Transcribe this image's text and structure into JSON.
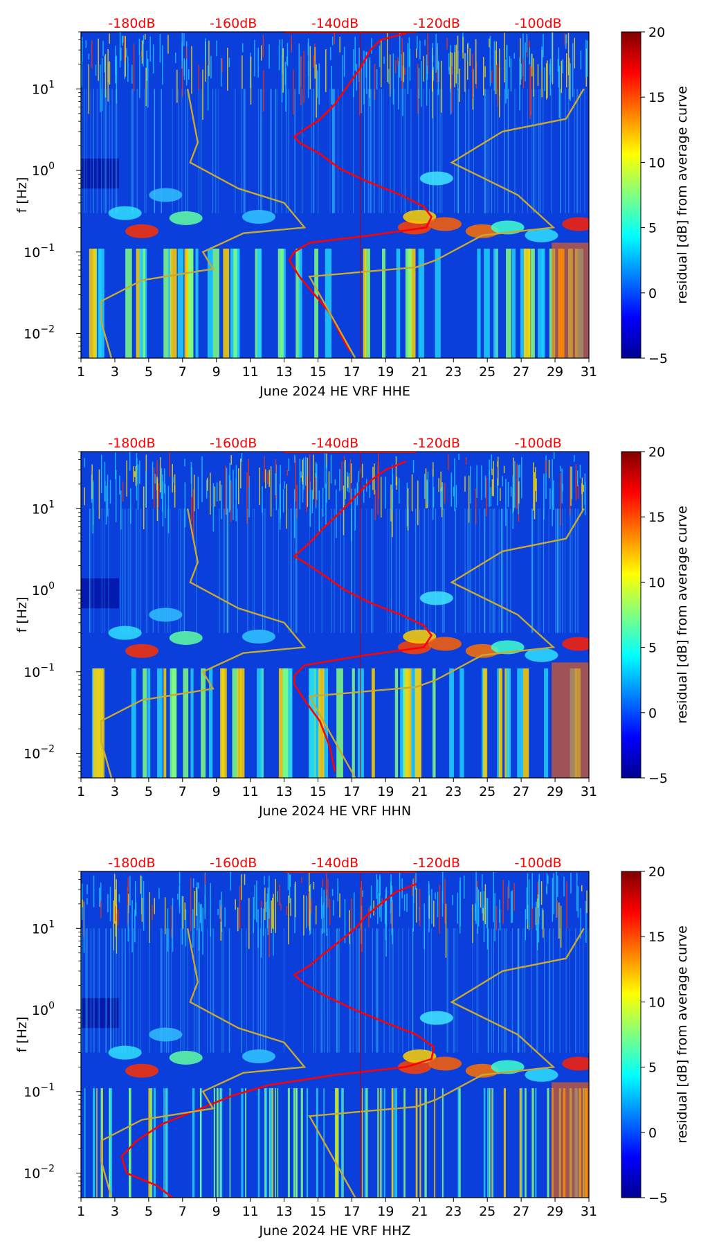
{
  "figure": {
    "colorbar": {
      "label": "residual [dB] from average curve",
      "ticks": [
        -5,
        0,
        5,
        10,
        15,
        20
      ],
      "range": [
        -5,
        20
      ],
      "colormap": "jet"
    }
  },
  "chart_data": [
    {
      "type": "heatmap",
      "xlabel": "June 2024 HE VRF  HHE",
      "ylabel": "f [Hz]",
      "x_ticks": [
        "1",
        "3",
        "5",
        "7",
        "9",
        "11",
        "13",
        "15",
        "17",
        "19",
        "21",
        "23",
        "25",
        "27",
        "29",
        "31"
      ],
      "xlim": [
        1,
        31
      ],
      "y_scale": "log",
      "ylim": [
        0.005,
        50
      ],
      "y_ticks": [
        "10^1",
        "10^0",
        "10^-1",
        "10^-2"
      ],
      "top_axis_labels": [
        "-180dB",
        "-160dB",
        "-140dB",
        "-120dB",
        "-100dB"
      ],
      "top_axis_db": [
        -180,
        -160,
        -140,
        -120,
        -100
      ],
      "series": [
        {
          "color": "#ff0000",
          "points": [
            [
              -126,
              48
            ],
            [
              -131,
              40
            ],
            [
              -133,
              30
            ],
            [
              -135,
              18
            ],
            [
              -137,
              12
            ],
            [
              -139,
              8
            ],
            [
              -140,
              6.5
            ],
            [
              -143,
              4.2
            ],
            [
              -146,
              3.2
            ],
            [
              -148,
              2.6
            ],
            [
              -147,
              2.2
            ],
            [
              -143,
              1.6
            ],
            [
              -139,
              1.05
            ],
            [
              -134,
              0.75
            ],
            [
              -127,
              0.5
            ],
            [
              -122.5,
              0.36
            ],
            [
              -121,
              0.27
            ],
            [
              -122,
              0.2
            ],
            [
              -133,
              0.16
            ],
            [
              -145,
              0.13
            ],
            [
              -148,
              0.1
            ],
            [
              -149,
              0.08
            ],
            [
              -147,
              0.05
            ],
            [
              -144,
              0.03
            ],
            [
              -141,
              0.018
            ],
            [
              -139,
              0.01
            ],
            [
              -137,
              0.006
            ]
          ]
        },
        {
          "color": "#c8aa32",
          "points": [
            [
              -169,
              10
            ],
            [
              -167,
              2.2
            ],
            [
              -168.5,
              1.25
            ],
            [
              -159,
              0.6
            ],
            [
              -150,
              0.4
            ],
            [
              -146,
              0.2
            ],
            [
              -158,
              0.17
            ],
            [
              -166,
              0.1
            ],
            [
              -164,
              0.062
            ],
            [
              -178,
              0.045
            ],
            [
              -186,
              0.025
            ],
            [
              -186,
              0.014
            ],
            [
              -184,
              0.005
            ]
          ]
        },
        {
          "color": "#c8aa32",
          "points": [
            [
              -91,
              10
            ],
            [
              -94.5,
              4.3
            ],
            [
              -107,
              3
            ],
            [
              -117,
              1.25
            ],
            [
              -104,
              0.5
            ],
            [
              -97,
              0.2
            ],
            [
              -111,
              0.16
            ],
            [
              -120,
              0.08
            ],
            [
              -124,
              0.065
            ],
            [
              -145,
              0.05
            ],
            [
              -136,
              0.005
            ]
          ]
        }
      ]
    },
    {
      "type": "heatmap",
      "xlabel": "June 2024 HE VRF  HHN",
      "ylabel": "f [Hz]",
      "x_ticks": [
        "1",
        "3",
        "5",
        "7",
        "9",
        "11",
        "13",
        "15",
        "17",
        "19",
        "21",
        "23",
        "25",
        "27",
        "29",
        "31"
      ],
      "xlim": [
        1,
        31
      ],
      "y_scale": "log",
      "ylim": [
        0.005,
        50
      ],
      "y_ticks": [
        "10^1",
        "10^0",
        "10^-1",
        "10^-2"
      ],
      "top_axis_labels": [
        "-180dB",
        "-160dB",
        "-140dB",
        "-120dB",
        "-100dB"
      ],
      "top_axis_db": [
        -180,
        -160,
        -140,
        -120,
        -100
      ],
      "series": [
        {
          "color": "#ff0000",
          "points": [
            [
              -126,
              38
            ],
            [
              -130,
              30
            ],
            [
              -133,
              22
            ],
            [
              -136,
              14
            ],
            [
              -139,
              9
            ],
            [
              -142,
              6
            ],
            [
              -145,
              3.8
            ],
            [
              -148,
              2.6
            ],
            [
              -146,
              2.2
            ],
            [
              -142,
              1.5
            ],
            [
              -138,
              1.0
            ],
            [
              -133,
              0.7
            ],
            [
              -127,
              0.5
            ],
            [
              -122.5,
              0.37
            ],
            [
              -121,
              0.28
            ],
            [
              -122.5,
              0.2
            ],
            [
              -134,
              0.16
            ],
            [
              -146,
              0.12
            ],
            [
              -148,
              0.09
            ],
            [
              -148,
              0.07
            ],
            [
              -146,
              0.045
            ],
            [
              -143,
              0.025
            ],
            [
              -141,
              0.012
            ],
            [
              -140,
              0.006
            ]
          ]
        },
        {
          "color": "#c8aa32",
          "points": [
            [
              -169,
              10
            ],
            [
              -167,
              2.2
            ],
            [
              -168.5,
              1.25
            ],
            [
              -159,
              0.6
            ],
            [
              -150,
              0.4
            ],
            [
              -146,
              0.2
            ],
            [
              -158,
              0.17
            ],
            [
              -166,
              0.1
            ],
            [
              -164,
              0.062
            ],
            [
              -178,
              0.045
            ],
            [
              -186,
              0.025
            ],
            [
              -186,
              0.014
            ],
            [
              -184,
              0.005
            ]
          ]
        },
        {
          "color": "#c8aa32",
          "points": [
            [
              -91,
              10
            ],
            [
              -94.5,
              4.3
            ],
            [
              -107,
              3
            ],
            [
              -117,
              1.25
            ],
            [
              -104,
              0.5
            ],
            [
              -97,
              0.2
            ],
            [
              -111,
              0.16
            ],
            [
              -120,
              0.08
            ],
            [
              -124,
              0.065
            ],
            [
              -145,
              0.05
            ],
            [
              -136,
              0.005
            ]
          ]
        }
      ]
    },
    {
      "type": "heatmap",
      "xlabel": "June 2024 HE VRF  HHZ",
      "ylabel": "f [Hz]",
      "x_ticks": [
        "1",
        "3",
        "5",
        "7",
        "9",
        "11",
        "13",
        "15",
        "17",
        "19",
        "21",
        "23",
        "25",
        "27",
        "29",
        "31"
      ],
      "xlim": [
        1,
        31
      ],
      "y_scale": "log",
      "ylim": [
        0.005,
        50
      ],
      "y_ticks": [
        "10^1",
        "10^0",
        "10^-1",
        "10^-2"
      ],
      "top_axis_labels": [
        "-180dB",
        "-160dB",
        "-140dB",
        "-120dB",
        "-100dB"
      ],
      "top_axis_db": [
        -180,
        -160,
        -140,
        -120,
        -100
      ],
      "series": [
        {
          "color": "#ff0000",
          "points": [
            [
              -124,
              35
            ],
            [
              -128,
              28
            ],
            [
              -131,
              20
            ],
            [
              -134,
              14
            ],
            [
              -136,
              10
            ],
            [
              -139,
              7
            ],
            [
              -142,
              5
            ],
            [
              -145,
              3.5
            ],
            [
              -148,
              2.7
            ],
            [
              -146,
              2.1
            ],
            [
              -142,
              1.5
            ],
            [
              -136,
              1.0
            ],
            [
              -130,
              0.7
            ],
            [
              -124,
              0.5
            ],
            [
              -120.5,
              0.35
            ],
            [
              -121,
              0.25
            ],
            [
              -126,
              0.2
            ],
            [
              -140,
              0.16
            ],
            [
              -153,
              0.12
            ],
            [
              -160,
              0.09
            ],
            [
              -167,
              0.06
            ],
            [
              -174,
              0.04
            ],
            [
              -179,
              0.025
            ],
            [
              -182,
              0.016
            ],
            [
              -181,
              0.01
            ],
            [
              -175,
              0.007
            ],
            [
              -172,
              0.005
            ]
          ]
        },
        {
          "color": "#c8aa32",
          "points": [
            [
              -169,
              10
            ],
            [
              -167,
              2.2
            ],
            [
              -168.5,
              1.25
            ],
            [
              -159,
              0.6
            ],
            [
              -150,
              0.4
            ],
            [
              -146,
              0.2
            ],
            [
              -158,
              0.17
            ],
            [
              -166,
              0.1
            ],
            [
              -164,
              0.062
            ],
            [
              -178,
              0.045
            ],
            [
              -186,
              0.025
            ],
            [
              -186,
              0.014
            ],
            [
              -184,
              0.005
            ]
          ]
        },
        {
          "color": "#c8aa32",
          "points": [
            [
              -91,
              10
            ],
            [
              -94.5,
              4.3
            ],
            [
              -107,
              3
            ],
            [
              -117,
              1.25
            ],
            [
              -104,
              0.5
            ],
            [
              -97,
              0.2
            ],
            [
              -111,
              0.16
            ],
            [
              -120,
              0.08
            ],
            [
              -124,
              0.065
            ],
            [
              -145,
              0.05
            ],
            [
              -136,
              0.005
            ]
          ]
        }
      ]
    }
  ]
}
